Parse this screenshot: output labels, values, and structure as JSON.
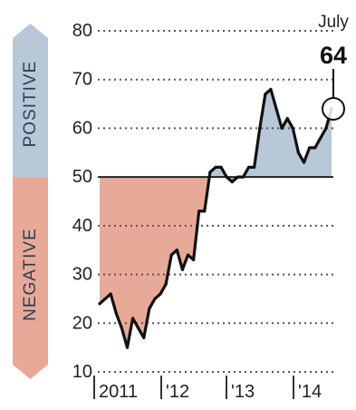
{
  "chart_data": {
    "type": "area",
    "y_ticks": [
      80,
      70,
      60,
      50,
      40,
      30,
      20,
      10
    ],
    "ylim": [
      10,
      80
    ],
    "baseline": 50,
    "x_tick_labels": [
      "2011",
      "'12",
      "'13",
      "'14"
    ],
    "region_labels": {
      "positive": "POSITIVE",
      "negative": "NEGATIVE"
    },
    "colors": {
      "positive_fill": "#b8c8d8",
      "negative_fill": "#e8aa98",
      "line": "#111111",
      "grid": "#555555",
      "baseline": "#222222"
    },
    "grid": true,
    "callout": {
      "label": "July",
      "value": "64",
      "value_number": 64
    },
    "series": [
      {
        "values": [
          24,
          25,
          26,
          22,
          19,
          15,
          21,
          19,
          17,
          23,
          25,
          26,
          28,
          34,
          35,
          31,
          34,
          33,
          43,
          43,
          51,
          52,
          52,
          50,
          49,
          50,
          50,
          52,
          52,
          60,
          67,
          68,
          64,
          60,
          62,
          60,
          55,
          53,
          56,
          56,
          58,
          60,
          64
        ]
      }
    ]
  }
}
